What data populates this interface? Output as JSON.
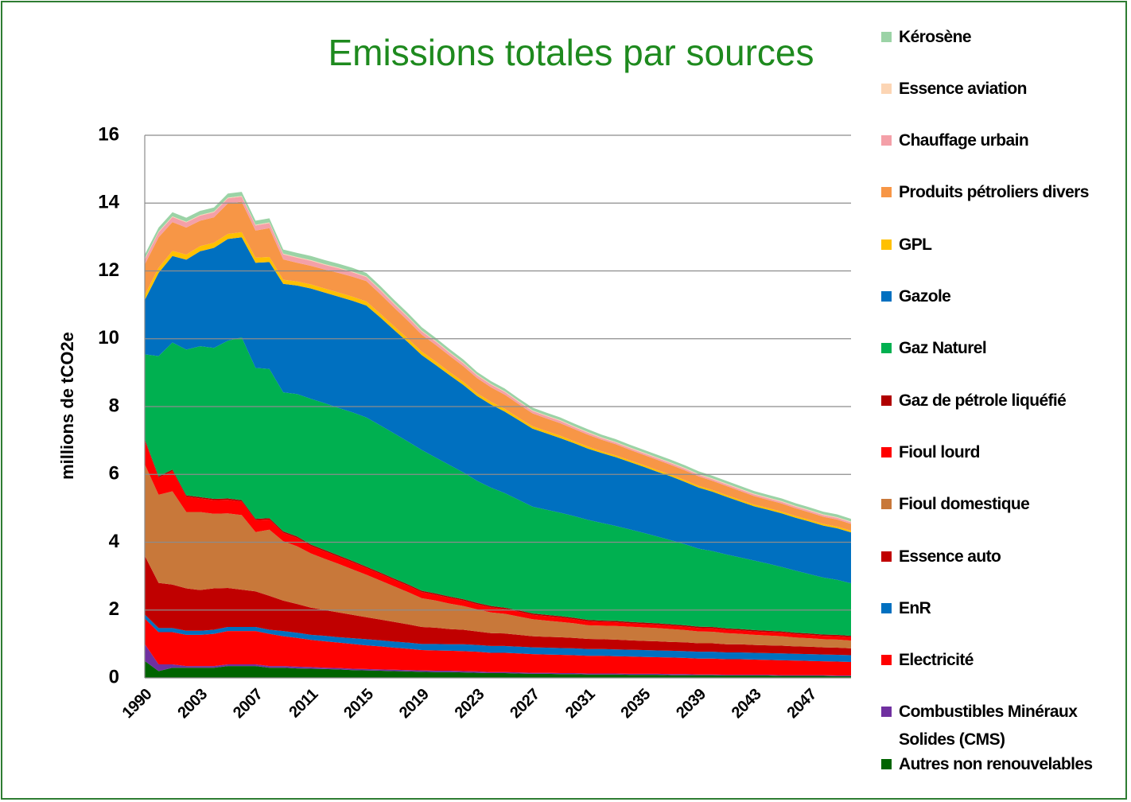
{
  "chart_data": {
    "type": "stacked-area",
    "title": "Emissions totales par sources",
    "ylabel": "millions de tCO2e",
    "categories": [
      "1990",
      null,
      null,
      null,
      "2003",
      null,
      null,
      null,
      "2007",
      null,
      null,
      null,
      "2011",
      null,
      null,
      null,
      "2015",
      null,
      null,
      null,
      "2019",
      null,
      null,
      null,
      "2023",
      null,
      null,
      null,
      "2027",
      null,
      null,
      null,
      "2031",
      null,
      null,
      null,
      "2035",
      null,
      null,
      null,
      "2039",
      null,
      null,
      null,
      "2043",
      null,
      null,
      null,
      "2047",
      null,
      null,
      null
    ],
    "ylim": [
      0,
      16
    ],
    "yticks": [
      0,
      2,
      4,
      6,
      8,
      10,
      12,
      14,
      16
    ],
    "grid": true,
    "legend": "right",
    "series": [
      {
        "name": "Autres non renouvelables",
        "color": "#006400",
        "values": [
          0.5,
          0.2,
          0.3,
          0.3,
          0.3,
          0.3,
          0.35,
          0.35,
          0.35,
          0.3,
          0.3,
          0.28,
          0.27,
          0.26,
          0.25,
          0.23,
          0.22,
          0.21,
          0.2,
          0.19,
          0.18,
          0.17,
          0.17,
          0.16,
          0.15,
          0.14,
          0.14,
          0.13,
          0.12,
          0.12,
          0.11,
          0.11,
          0.1,
          0.1,
          0.1,
          0.09,
          0.09,
          0.09,
          0.08,
          0.08,
          0.08,
          0.08,
          0.07,
          0.07,
          0.07,
          0.07,
          0.06,
          0.06,
          0.06,
          0.06,
          0.05,
          0.05
        ]
      },
      {
        "name": "Combustibles Minéraux Solides (CMS)",
        "color": "#7030a0",
        "values": [
          0.5,
          0.2,
          0.1,
          0.05,
          0.05,
          0.05,
          0.05,
          0.05,
          0.05,
          0.05,
          0.05,
          0.05,
          0.05,
          0.04,
          0.04,
          0.04,
          0.04,
          0.04,
          0.04,
          0.04,
          0.04,
          0.04,
          0.04,
          0.04,
          0.04,
          0.03,
          0.03,
          0.03,
          0.03,
          0.03,
          0.03,
          0.03,
          0.03,
          0.03,
          0.03,
          0.03,
          0.03,
          0.03,
          0.03,
          0.03,
          0.02,
          0.02,
          0.02,
          0.02,
          0.02,
          0.02,
          0.02,
          0.02,
          0.02,
          0.02,
          0.02,
          0.02
        ]
      },
      {
        "name": "Electricité",
        "color": "#ff0000",
        "values": [
          0.75,
          0.95,
          0.95,
          0.92,
          0.92,
          0.95,
          0.98,
          0.98,
          0.98,
          0.95,
          0.88,
          0.85,
          0.8,
          0.78,
          0.75,
          0.73,
          0.7,
          0.68,
          0.65,
          0.63,
          0.6,
          0.6,
          0.59,
          0.59,
          0.58,
          0.57,
          0.57,
          0.56,
          0.55,
          0.54,
          0.54,
          0.53,
          0.52,
          0.52,
          0.51,
          0.51,
          0.5,
          0.49,
          0.49,
          0.48,
          0.47,
          0.47,
          0.46,
          0.46,
          0.45,
          0.44,
          0.44,
          0.43,
          0.42,
          0.41,
          0.41,
          0.4
        ]
      },
      {
        "name": "EnR",
        "color": "#0070c0",
        "values": [
          0.12,
          0.12,
          0.12,
          0.12,
          0.12,
          0.12,
          0.12,
          0.12,
          0.12,
          0.12,
          0.15,
          0.15,
          0.15,
          0.16,
          0.16,
          0.17,
          0.18,
          0.18,
          0.18,
          0.18,
          0.18,
          0.19,
          0.19,
          0.2,
          0.2,
          0.2,
          0.2,
          0.2,
          0.2,
          0.2,
          0.2,
          0.2,
          0.2,
          0.2,
          0.2,
          0.2,
          0.2,
          0.2,
          0.2,
          0.2,
          0.2,
          0.2,
          0.2,
          0.2,
          0.2,
          0.2,
          0.2,
          0.2,
          0.2,
          0.2,
          0.2,
          0.2
        ]
      },
      {
        "name": "Essence auto",
        "color": "#c00000",
        "values": [
          1.73,
          1.33,
          1.28,
          1.25,
          1.2,
          1.22,
          1.15,
          1.1,
          1.05,
          1.0,
          0.9,
          0.85,
          0.8,
          0.76,
          0.73,
          0.69,
          0.65,
          0.61,
          0.58,
          0.54,
          0.5,
          0.48,
          0.45,
          0.43,
          0.4,
          0.38,
          0.37,
          0.35,
          0.33,
          0.32,
          0.32,
          0.31,
          0.3,
          0.29,
          0.29,
          0.28,
          0.27,
          0.27,
          0.26,
          0.26,
          0.25,
          0.25,
          0.24,
          0.24,
          0.23,
          0.23,
          0.23,
          0.22,
          0.22,
          0.21,
          0.21,
          0.2
        ]
      },
      {
        "name": "Fioul domestique",
        "color": "#c8783a",
        "values": [
          2.7,
          2.6,
          2.75,
          2.25,
          2.3,
          2.2,
          2.2,
          2.2,
          1.75,
          1.95,
          1.75,
          1.7,
          1.6,
          1.51,
          1.43,
          1.34,
          1.25,
          1.15,
          1.05,
          0.95,
          0.85,
          0.8,
          0.75,
          0.7,
          0.65,
          0.61,
          0.58,
          0.54,
          0.5,
          0.48,
          0.45,
          0.43,
          0.4,
          0.4,
          0.4,
          0.4,
          0.4,
          0.39,
          0.38,
          0.36,
          0.35,
          0.34,
          0.33,
          0.31,
          0.3,
          0.29,
          0.28,
          0.26,
          0.25,
          0.24,
          0.24,
          0.23
        ]
      },
      {
        "name": "Fioul lourd",
        "color": "#ff0000",
        "values": [
          0.7,
          0.5,
          0.6,
          0.45,
          0.4,
          0.4,
          0.4,
          0.4,
          0.35,
          0.3,
          0.25,
          0.25,
          0.22,
          0.22,
          0.21,
          0.21,
          0.2,
          0.2,
          0.19,
          0.19,
          0.18,
          0.17,
          0.17,
          0.16,
          0.15,
          0.15,
          0.14,
          0.14,
          0.13,
          0.13,
          0.13,
          0.12,
          0.12,
          0.11,
          0.11,
          0.1,
          0.1,
          0.1,
          0.1,
          0.1,
          0.1,
          0.1,
          0.1,
          0.1,
          0.1,
          0.1,
          0.1,
          0.1,
          0.1,
          0.1,
          0.1,
          0.1
        ]
      },
      {
        "name": "Gaz de pétrole liquéfié",
        "color": "#b00000",
        "values": [
          0.04,
          0.04,
          0.04,
          0.04,
          0.04,
          0.04,
          0.04,
          0.04,
          0.04,
          0.04,
          0.04,
          0.04,
          0.04,
          0.04,
          0.04,
          0.04,
          0.04,
          0.04,
          0.04,
          0.04,
          0.04,
          0.04,
          0.04,
          0.04,
          0.04,
          0.04,
          0.04,
          0.04,
          0.04,
          0.04,
          0.04,
          0.04,
          0.04,
          0.04,
          0.04,
          0.04,
          0.04,
          0.04,
          0.04,
          0.04,
          0.04,
          0.04,
          0.04,
          0.04,
          0.04,
          0.04,
          0.04,
          0.04,
          0.04,
          0.04,
          0.04,
          0.04
        ]
      },
      {
        "name": "Gaz Naturel",
        "color": "#00b050",
        "values": [
          2.5,
          3.55,
          3.75,
          4.3,
          4.45,
          4.45,
          4.65,
          4.8,
          4.45,
          4.4,
          4.1,
          4.2,
          4.3,
          4.33,
          4.35,
          4.38,
          4.4,
          4.34,
          4.28,
          4.21,
          4.15,
          4.01,
          3.88,
          3.74,
          3.6,
          3.49,
          3.38,
          3.26,
          3.15,
          3.1,
          3.05,
          3.0,
          2.95,
          2.88,
          2.8,
          2.73,
          2.65,
          2.56,
          2.48,
          2.39,
          2.3,
          2.24,
          2.18,
          2.11,
          2.05,
          1.98,
          1.9,
          1.83,
          1.75,
          1.68,
          1.62,
          1.55
        ]
      },
      {
        "name": "Gazole",
        "color": "#0070c0",
        "values": [
          1.6,
          2.45,
          2.55,
          2.65,
          2.8,
          2.95,
          3.0,
          2.95,
          3.1,
          3.15,
          3.2,
          3.2,
          3.25,
          3.26,
          3.28,
          3.29,
          3.3,
          3.18,
          3.05,
          2.93,
          2.8,
          2.73,
          2.65,
          2.58,
          2.5,
          2.45,
          2.4,
          2.35,
          2.3,
          2.25,
          2.2,
          2.15,
          2.1,
          2.06,
          2.03,
          1.99,
          1.95,
          1.91,
          1.88,
          1.84,
          1.8,
          1.75,
          1.7,
          1.65,
          1.6,
          1.59,
          1.58,
          1.56,
          1.55,
          1.53,
          1.52,
          1.5
        ]
      },
      {
        "name": "GPL",
        "color": "#ffc000",
        "values": [
          0.15,
          0.15,
          0.15,
          0.15,
          0.15,
          0.15,
          0.15,
          0.15,
          0.15,
          0.15,
          0.12,
          0.12,
          0.12,
          0.12,
          0.12,
          0.12,
          0.12,
          0.11,
          0.11,
          0.1,
          0.1,
          0.1,
          0.09,
          0.09,
          0.08,
          0.08,
          0.08,
          0.07,
          0.07,
          0.07,
          0.07,
          0.06,
          0.06,
          0.05,
          0.05,
          0.05,
          0.05,
          0.05,
          0.05,
          0.05,
          0.05,
          0.05,
          0.05,
          0.05,
          0.05,
          0.05,
          0.05,
          0.05,
          0.05,
          0.05,
          0.05,
          0.05
        ]
      },
      {
        "name": "Produits pétroliers divers",
        "color": "#f79646",
        "values": [
          0.9,
          0.9,
          0.85,
          0.8,
          0.75,
          0.75,
          0.9,
          0.9,
          0.8,
          0.85,
          0.6,
          0.55,
          0.55,
          0.56,
          0.58,
          0.59,
          0.6,
          0.58,
          0.55,
          0.53,
          0.5,
          0.49,
          0.48,
          0.46,
          0.45,
          0.43,
          0.42,
          0.4,
          0.38,
          0.37,
          0.37,
          0.36,
          0.35,
          0.34,
          0.33,
          0.31,
          0.3,
          0.3,
          0.29,
          0.29,
          0.28,
          0.27,
          0.27,
          0.26,
          0.25,
          0.24,
          0.24,
          0.23,
          0.22,
          0.21,
          0.21,
          0.2
        ]
      },
      {
        "name": "Chauffage urbain",
        "color": "#f4a0a8",
        "values": [
          0.15,
          0.15,
          0.15,
          0.15,
          0.15,
          0.15,
          0.15,
          0.15,
          0.15,
          0.15,
          0.15,
          0.15,
          0.15,
          0.14,
          0.14,
          0.13,
          0.12,
          0.12,
          0.11,
          0.11,
          0.1,
          0.1,
          0.09,
          0.09,
          0.08,
          0.08,
          0.08,
          0.07,
          0.07,
          0.07,
          0.07,
          0.06,
          0.06,
          0.05,
          0.05,
          0.05,
          0.05,
          0.05,
          0.05,
          0.05,
          0.05,
          0.05,
          0.05,
          0.05,
          0.05,
          0.05,
          0.05,
          0.05,
          0.05,
          0.05,
          0.05,
          0.05
        ]
      },
      {
        "name": "Essence aviation",
        "color": "#fcd5b4",
        "values": [
          0.02,
          0.02,
          0.02,
          0.02,
          0.02,
          0.02,
          0.02,
          0.02,
          0.02,
          0.02,
          0.02,
          0.02,
          0.02,
          0.02,
          0.02,
          0.02,
          0.02,
          0.02,
          0.02,
          0.02,
          0.02,
          0.02,
          0.02,
          0.02,
          0.02,
          0.02,
          0.02,
          0.02,
          0.02,
          0.02,
          0.02,
          0.02,
          0.02,
          0.02,
          0.02,
          0.02,
          0.02,
          0.02,
          0.02,
          0.02,
          0.02,
          0.02,
          0.02,
          0.02,
          0.02,
          0.02,
          0.02,
          0.02,
          0.02,
          0.02,
          0.02,
          0.02
        ]
      },
      {
        "name": "Kérosène",
        "color": "#9bd3a6",
        "values": [
          0.12,
          0.12,
          0.12,
          0.12,
          0.12,
          0.12,
          0.12,
          0.12,
          0.12,
          0.12,
          0.12,
          0.12,
          0.12,
          0.12,
          0.11,
          0.11,
          0.1,
          0.1,
          0.1,
          0.1,
          0.1,
          0.09,
          0.09,
          0.09,
          0.08,
          0.08,
          0.08,
          0.08,
          0.08,
          0.08,
          0.08,
          0.08,
          0.08,
          0.08,
          0.08,
          0.08,
          0.08,
          0.08,
          0.08,
          0.08,
          0.08,
          0.08,
          0.08,
          0.08,
          0.08,
          0.08,
          0.08,
          0.08,
          0.08,
          0.08,
          0.08,
          0.08
        ]
      }
    ]
  }
}
